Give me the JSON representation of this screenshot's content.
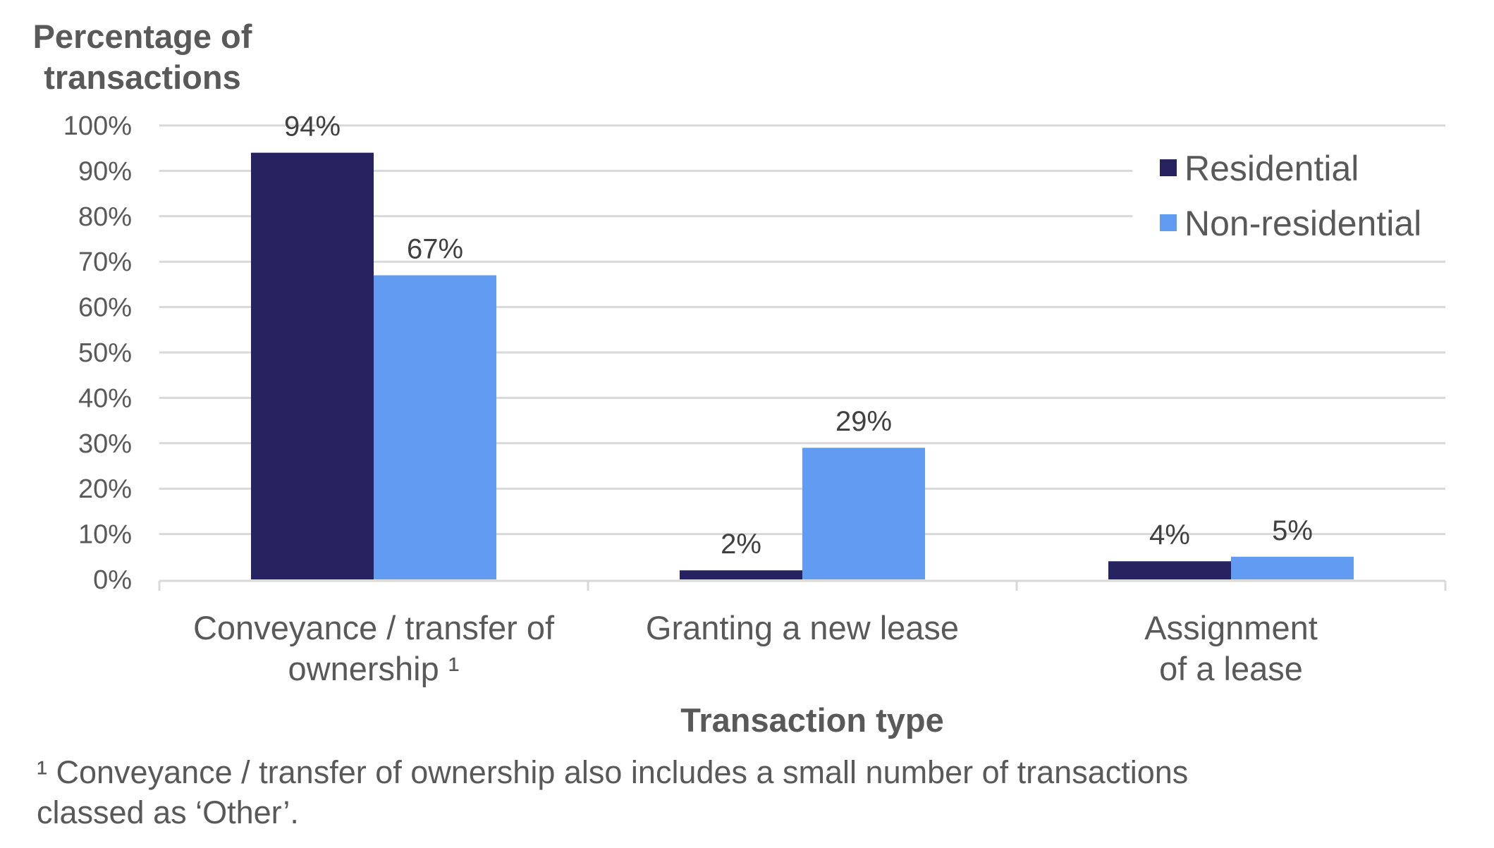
{
  "chart_data": {
    "type": "bar",
    "title": "",
    "ylabel": [
      "Percentage of",
      "transactions"
    ],
    "xlabel": "Transaction type",
    "ylim": [
      0,
      100
    ],
    "yticks": [
      0,
      10,
      20,
      30,
      40,
      50,
      60,
      70,
      80,
      90,
      100
    ],
    "ytick_labels": [
      "0%",
      "10%",
      "20%",
      "30%",
      "40%",
      "50%",
      "60%",
      "70%",
      "80%",
      "90%",
      "100%"
    ],
    "grid": true,
    "legend_position": "top-right",
    "categories": [
      [
        "Conveyance / transfer of",
        "ownership ¹"
      ],
      [
        "Granting a new lease"
      ],
      [
        "Assignment",
        "of a lease"
      ]
    ],
    "series": [
      {
        "name": "Residential",
        "color": "#272361",
        "values": [
          94,
          2,
          4
        ],
        "labels": [
          "94%",
          "2%",
          "4%"
        ]
      },
      {
        "name": "Non-residential",
        "color": "#619CF2",
        "values": [
          67,
          29,
          5
        ],
        "labels": [
          "67%",
          "29%",
          "5%"
        ]
      }
    ],
    "footnote": [
      "¹ Conveyance / transfer of ownership also includes a small number of transactions",
      "classed as ‘Other’."
    ]
  },
  "colors": {
    "grid": "#d9d9d9",
    "text": "#595959",
    "label": "#404040"
  }
}
